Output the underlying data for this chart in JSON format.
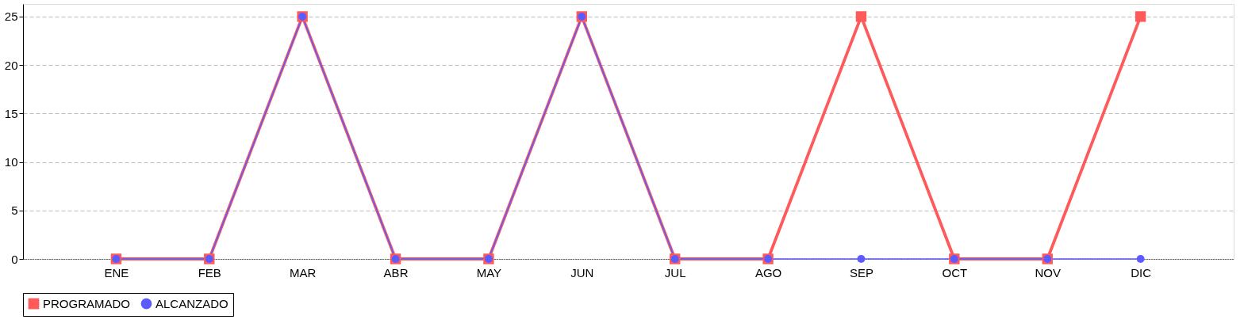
{
  "chart_data": {
    "type": "line",
    "categories": [
      "ENE",
      "FEB",
      "MAR",
      "ABR",
      "MAY",
      "JUN",
      "JUL",
      "AGO",
      "SEP",
      "OCT",
      "NOV",
      "DIC"
    ],
    "series": [
      {
        "name": "PROGRAMADO",
        "color": "#ff5a5a",
        "marker": "square",
        "values": [
          0,
          0,
          25,
          0,
          0,
          25,
          0,
          0,
          25,
          0,
          0,
          25
        ]
      },
      {
        "name": "ALCANZADO",
        "color": "#5b5bff",
        "marker": "circle",
        "values": [
          0,
          0,
          25,
          0,
          0,
          25,
          0,
          0,
          0,
          0,
          0,
          0
        ]
      }
    ],
    "ylim": [
      0,
      26.3
    ],
    "yticks": [
      0,
      5,
      10,
      15,
      20,
      25
    ],
    "grid": "y",
    "legend": "bottom",
    "line_style": "solid"
  }
}
